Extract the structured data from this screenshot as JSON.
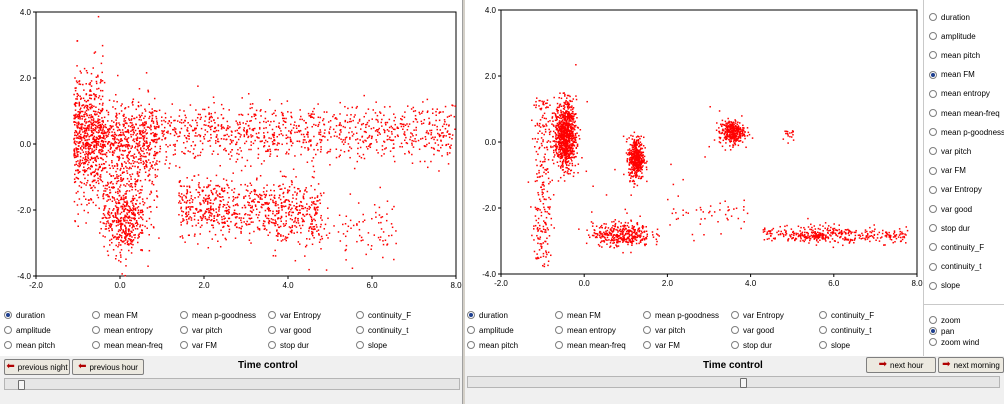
{
  "left": {
    "plot": {
      "x_ticks": [
        "-2.0",
        "0.0",
        "2.0",
        "4.0",
        "6.0",
        "8.0"
      ],
      "y_ticks": [
        "4.0",
        "2.0",
        "0.0",
        "-2.0",
        "-4.0"
      ],
      "point_color": "#ff0000"
    },
    "features": [
      {
        "label": "duration",
        "selected": true
      },
      {
        "label": "amplitude",
        "selected": false
      },
      {
        "label": "mean pitch",
        "selected": false
      },
      {
        "label": "mean FM",
        "selected": false
      },
      {
        "label": "mean entropy",
        "selected": false
      },
      {
        "label": "mean mean-freq",
        "selected": false
      },
      {
        "label": "mean p-goodness",
        "selected": false
      },
      {
        "label": "var pitch",
        "selected": false
      },
      {
        "label": "var FM",
        "selected": false
      },
      {
        "label": "var Entropy",
        "selected": false
      },
      {
        "label": "var good",
        "selected": false
      },
      {
        "label": "stop dur",
        "selected": false
      },
      {
        "label": "continuity_F",
        "selected": false
      },
      {
        "label": "continuity_t",
        "selected": false
      },
      {
        "label": "slope",
        "selected": false
      }
    ],
    "buttons": {
      "previous_night": "previous night",
      "previous_hour": "previous hour"
    },
    "time_control": "Time control",
    "slider_position": 0.03
  },
  "right": {
    "plot": {
      "x_ticks": [
        "-2.0",
        "0.0",
        "2.0",
        "4.0",
        "6.0",
        "8.0"
      ],
      "y_ticks": [
        "4.0",
        "2.0",
        "0.0",
        "-2.0",
        "-4.0"
      ],
      "point_color": "#ff0000"
    },
    "features": [
      {
        "label": "duration",
        "selected": true
      },
      {
        "label": "amplitude",
        "selected": false
      },
      {
        "label": "mean pitch",
        "selected": false
      },
      {
        "label": "mean FM",
        "selected": false
      },
      {
        "label": "mean entropy",
        "selected": false
      },
      {
        "label": "mean mean-freq",
        "selected": false
      },
      {
        "label": "mean p-goodness",
        "selected": false
      },
      {
        "label": "var pitch",
        "selected": false
      },
      {
        "label": "var FM",
        "selected": false
      },
      {
        "label": "var Entropy",
        "selected": false
      },
      {
        "label": "var good",
        "selected": false
      },
      {
        "label": "stop dur",
        "selected": false
      },
      {
        "label": "continuity_F",
        "selected": false
      },
      {
        "label": "continuity_t",
        "selected": false
      },
      {
        "label": "slope",
        "selected": false
      }
    ],
    "y_features": [
      {
        "label": "duration",
        "selected": false
      },
      {
        "label": "amplitude",
        "selected": false
      },
      {
        "label": "mean pitch",
        "selected": false
      },
      {
        "label": "mean FM",
        "selected": true
      },
      {
        "label": "mean entropy",
        "selected": false
      },
      {
        "label": "mean mean-freq",
        "selected": false
      },
      {
        "label": "mean p-goodness",
        "selected": false
      },
      {
        "label": "var pitch",
        "selected": false
      },
      {
        "label": "var FM",
        "selected": false
      },
      {
        "label": "var Entropy",
        "selected": false
      },
      {
        "label": "var good",
        "selected": false
      },
      {
        "label": "stop dur",
        "selected": false
      },
      {
        "label": "continuity_F",
        "selected": false
      },
      {
        "label": "continuity_t",
        "selected": false
      },
      {
        "label": "slope",
        "selected": false
      }
    ],
    "modes": [
      {
        "label": "zoom",
        "selected": false
      },
      {
        "label": "pan",
        "selected": true
      },
      {
        "label": "zoom wind",
        "selected": false
      }
    ],
    "buttons": {
      "next_hour": "next hour",
      "next_morning": "next morning"
    },
    "time_control": "Time control",
    "slider_position": 0.52
  }
}
